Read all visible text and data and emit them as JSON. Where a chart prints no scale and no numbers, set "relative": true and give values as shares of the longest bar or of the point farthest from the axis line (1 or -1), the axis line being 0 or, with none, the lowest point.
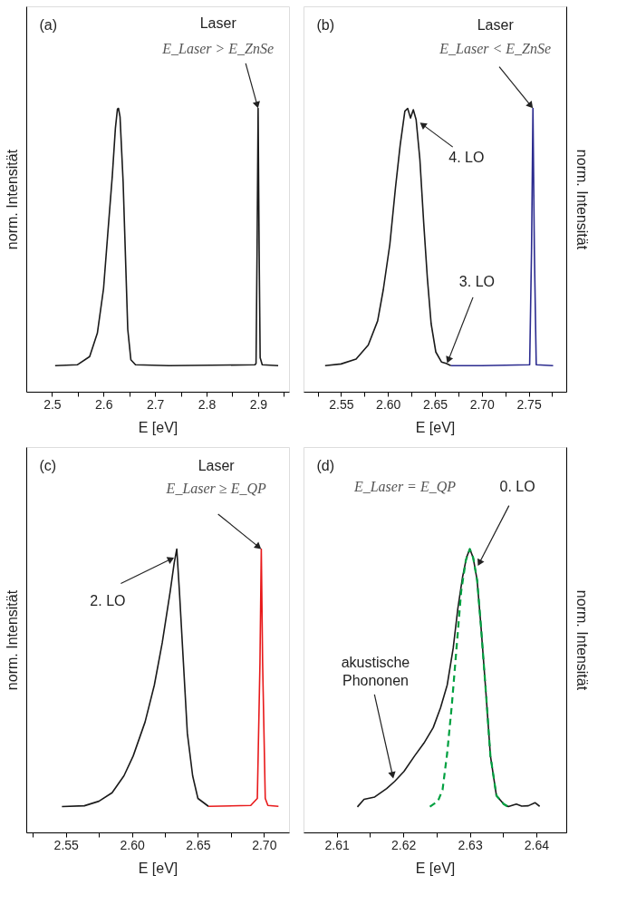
{
  "chart_data": [
    {
      "type": "line",
      "relative": true,
      "xlabel": "E [eV]",
      "ylabel": "norm. Intensität",
      "xlim": [
        2.45,
        2.96
      ],
      "xticks": [
        2.5,
        {
          "value": 2.55,
          "label": null
        },
        2.6,
        {
          "value": 2.65,
          "label": null
        },
        2.7,
        {
          "value": 2.75,
          "label": null
        },
        2.8,
        {
          "value": 2.85,
          "label": null
        },
        2.9,
        {
          "value": 2.95,
          "label": null
        }
      ],
      "series": [
        {
          "color": "#1a1a1a",
          "x": [
            2.506,
            2.549,
            2.573,
            2.588,
            2.6,
            2.608,
            2.617,
            2.623,
            2.627,
            2.629,
            2.632,
            2.638,
            2.643,
            2.647,
            2.653,
            2.662,
            2.727,
            2.894,
            2.896,
            2.898,
            2.9,
            2.902,
            2.904,
            2.908,
            2.939
          ],
          "values": [
            0.092,
            0.095,
            0.124,
            0.207,
            0.364,
            0.553,
            0.762,
            0.93,
            0.998,
            1.0,
            0.97,
            0.74,
            0.45,
            0.22,
            0.113,
            0.095,
            0.092,
            0.095,
            0.1,
            0.5,
            1.0,
            0.5,
            0.12,
            0.095,
            0.092
          ]
        }
      ],
      "annotations": [
        "(a)",
        "Laser",
        {
          "text": "E_Laser > E_ZnSe",
          "x": 2.9,
          "y": 1.0
        }
      ]
    },
    {
      "type": "line",
      "relative": true,
      "xlabel": "E [eV]",
      "ylabel": "norm. Intensität",
      "xlim": [
        2.51,
        2.79
      ],
      "xticks": [
        {
          "value": 2.525,
          "label": null
        },
        2.55,
        {
          "value": 2.575,
          "label": null
        },
        {
          "value": 2.6,
          "label": "2.60"
        },
        {
          "value": 2.625,
          "label": null
        },
        2.65,
        {
          "value": 2.675,
          "label": null
        },
        {
          "value": 2.7,
          "label": "2.70"
        },
        {
          "value": 2.725,
          "label": null
        },
        2.75,
        {
          "value": 2.775,
          "label": null
        }
      ],
      "series": [
        {
          "color": "#1a1a1a",
          "x": [
            2.533,
            2.55,
            2.566,
            2.579,
            2.589,
            2.595,
            2.602,
            2.608,
            2.613,
            2.618,
            2.621,
            2.624,
            2.627,
            2.63,
            2.634,
            2.638,
            2.642,
            2.646,
            2.651,
            2.657,
            2.662,
            2.667
          ],
          "values": [
            0.092,
            0.098,
            0.115,
            0.165,
            0.25,
            0.36,
            0.52,
            0.72,
            0.87,
            0.99,
            1.0,
            0.966,
            0.995,
            0.96,
            0.82,
            0.6,
            0.4,
            0.24,
            0.14,
            0.105,
            0.1,
            0.092
          ]
        },
        {
          "color": "#2b2b8f",
          "x": [
            2.667,
            2.7,
            2.751,
            2.753,
            2.7545,
            2.756,
            2.758,
            2.776
          ],
          "values": [
            0.092,
            0.092,
            0.095,
            0.5,
            1.0,
            0.5,
            0.095,
            0.092
          ]
        }
      ],
      "annotations": [
        "(b)",
        "Laser",
        {
          "text": "E_Laser < E_ZnSe",
          "x": 2.7545,
          "y": 1.0
        },
        {
          "text": "4. LO",
          "x": 2.634,
          "y": 0.95
        },
        {
          "text": "3. LO",
          "x": 2.663,
          "y": 0.1
        }
      ]
    },
    {
      "type": "line",
      "relative": true,
      "xlabel": "E [eV]",
      "ylabel": "norm. Intensität",
      "xlim": [
        2.52,
        2.719
      ],
      "xticks": [
        {
          "value": 2.525,
          "label": null
        },
        2.55,
        {
          "value": 2.575,
          "label": null
        },
        {
          "value": 2.6,
          "label": "2.60"
        },
        {
          "value": 2.625,
          "label": null
        },
        2.65,
        {
          "value": 2.675,
          "label": null
        },
        {
          "value": 2.7,
          "label": "2.70"
        }
      ],
      "series": [
        {
          "color": "#1a1a1a",
          "x": [
            2.547,
            2.564,
            2.575,
            2.585,
            2.594,
            2.601,
            2.61,
            2.617,
            2.623,
            2.629,
            2.632,
            2.634,
            2.636,
            2.639,
            2.642,
            2.646,
            2.65,
            2.658
          ],
          "values": [
            0.091,
            0.094,
            0.11,
            0.14,
            0.2,
            0.27,
            0.39,
            0.52,
            0.67,
            0.85,
            0.95,
            1.0,
            0.85,
            0.6,
            0.35,
            0.2,
            0.12,
            0.092
          ]
        },
        {
          "color": "#e8191a",
          "x": [
            2.658,
            2.69,
            2.695,
            2.697,
            2.698,
            2.699,
            2.701,
            2.703,
            2.711
          ],
          "values": [
            0.092,
            0.095,
            0.12,
            0.6,
            1.0,
            0.6,
            0.12,
            0.095,
            0.092
          ]
        }
      ],
      "annotations": [
        "(c)",
        "Laser",
        {
          "text": "E_Laser ≥ E_QP",
          "x": 2.698,
          "y": 1.0
        },
        {
          "text": "2. LO",
          "x": 2.632,
          "y": 0.97
        }
      ]
    },
    {
      "type": "line",
      "relative": true,
      "xlabel": "E [eV]",
      "ylabel": "norm. Intensität",
      "xlim": [
        2.605,
        2.6445
      ],
      "xticks": [
        2.61,
        {
          "value": 2.615,
          "label": null
        },
        2.62,
        {
          "value": 2.625,
          "label": null
        },
        2.63,
        {
          "value": 2.635,
          "label": null
        },
        2.64
      ],
      "series": [
        {
          "color": "#1a1a1a",
          "x": [
            2.6131,
            2.6141,
            2.6157,
            2.6175,
            2.6187,
            2.6201,
            2.6217,
            2.6231,
            2.6245,
            2.6256,
            2.6266,
            2.6275,
            2.6282,
            2.6289,
            2.6295,
            2.63,
            2.6305,
            2.6311,
            2.6317,
            2.6324,
            2.6331,
            2.634,
            2.6351,
            2.6358,
            2.637,
            2.6378,
            2.6388,
            2.6398,
            2.6405
          ],
          "values": [
            0.09,
            0.117,
            0.125,
            0.155,
            0.18,
            0.215,
            0.27,
            0.315,
            0.37,
            0.44,
            0.52,
            0.65,
            0.79,
            0.9,
            0.97,
            1.0,
            0.97,
            0.89,
            0.72,
            0.5,
            0.27,
            0.13,
            0.1,
            0.091,
            0.1,
            0.093,
            0.094,
            0.105,
            0.092
          ]
        },
        {
          "color": "#00a040",
          "line_style": "dashed",
          "x": [
            2.624,
            2.6252,
            2.6259,
            2.6266,
            2.6273,
            2.628,
            2.6287,
            2.6294,
            2.63,
            2.6305,
            2.6311,
            2.6317,
            2.6324,
            2.6331,
            2.634,
            2.6351,
            2.6357
          ],
          "values": [
            0.091,
            0.11,
            0.15,
            0.28,
            0.45,
            0.65,
            0.85,
            0.96,
            1.0,
            0.97,
            0.89,
            0.72,
            0.5,
            0.27,
            0.13,
            0.1,
            0.091
          ]
        }
      ],
      "annotations": [
        "(d)",
        "E_Laser = E_QP",
        {
          "text": "0. LO",
          "x": 2.6312,
          "y": 0.94
        },
        {
          "text": "akustische\nPhononen",
          "x": 2.6185,
          "y": 0.19
        }
      ]
    }
  ]
}
